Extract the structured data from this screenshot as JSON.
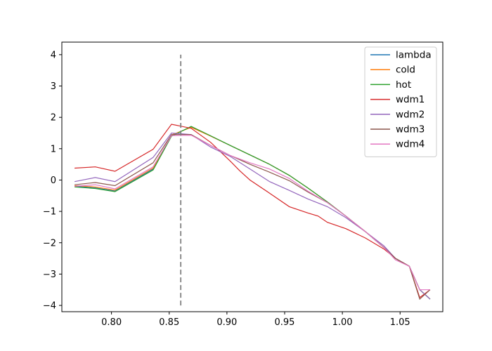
{
  "chart_data": {
    "type": "line",
    "title": "",
    "xlabel": "",
    "ylabel": "",
    "xlim": [
      0.757,
      1.087
    ],
    "ylim": [
      -4.2,
      4.4
    ],
    "xticks": [
      0.8,
      0.85,
      0.9,
      0.95,
      1.0,
      1.05
    ],
    "xtick_labels": [
      "0.80",
      "0.85",
      "0.90",
      "0.95",
      "1.00",
      "1.05"
    ],
    "yticks": [
      -4,
      -3,
      -2,
      -1,
      0,
      1,
      2,
      3,
      4
    ],
    "ytick_labels": [
      "−4",
      "−3",
      "−2",
      "−1",
      "0",
      "1",
      "2",
      "3",
      "4"
    ],
    "grid": false,
    "legend_position": "top-right",
    "vline": {
      "x": 0.86,
      "y_range": [
        -4,
        4
      ],
      "style": "dashed",
      "color": "#808080"
    },
    "series": [
      {
        "name": "lambda",
        "color": "#1f77b4",
        "x": [
          0.768,
          0.786,
          0.803,
          0.836,
          0.852,
          0.869,
          0.886,
          0.903,
          0.92,
          0.937,
          0.954,
          0.97,
          0.987,
          1.003,
          1.02,
          1.036,
          1.046,
          1.058,
          1.067,
          1.076
        ],
        "y": [
          -0.2,
          -0.25,
          -0.35,
          0.35,
          1.42,
          1.7,
          1.4,
          1.1,
          0.8,
          0.5,
          0.15,
          -0.25,
          -0.7,
          -1.15,
          -1.65,
          -2.15,
          -2.5,
          -2.75,
          -3.5,
          -3.8
        ]
      },
      {
        "name": "cold",
        "color": "#ff7f0e",
        "x": [
          0.768,
          0.786,
          0.803,
          0.836,
          0.852,
          0.869,
          0.886,
          0.903,
          0.92,
          0.937,
          0.954,
          0.97,
          0.987,
          1.003,
          1.02,
          1.036,
          1.046,
          1.058,
          1.067,
          1.076
        ],
        "y": [
          -0.18,
          -0.22,
          -0.32,
          0.38,
          1.44,
          1.68,
          1.4,
          1.1,
          0.8,
          0.5,
          0.15,
          -0.25,
          -0.7,
          -1.15,
          -1.65,
          -2.15,
          -2.5,
          -2.75,
          -3.5,
          -3.8
        ]
      },
      {
        "name": "hot",
        "color": "#2ca02c",
        "x": [
          0.768,
          0.786,
          0.803,
          0.836,
          0.852,
          0.869,
          0.886,
          0.903,
          0.92,
          0.937,
          0.954,
          0.97,
          0.987,
          1.003,
          1.02,
          1.036,
          1.046,
          1.058,
          1.067,
          1.076
        ],
        "y": [
          -0.22,
          -0.27,
          -0.37,
          0.32,
          1.4,
          1.71,
          1.41,
          1.1,
          0.8,
          0.5,
          0.15,
          -0.25,
          -0.7,
          -1.15,
          -1.65,
          -2.15,
          -2.5,
          -2.75,
          -3.5,
          -3.8
        ]
      },
      {
        "name": "wdm1",
        "color": "#d62728",
        "x": [
          0.768,
          0.786,
          0.803,
          0.836,
          0.852,
          0.869,
          0.886,
          0.903,
          0.911,
          0.92,
          0.937,
          0.954,
          0.97,
          0.979,
          0.987,
          1.003,
          1.02,
          1.036,
          1.046,
          1.058,
          1.067,
          1.076
        ],
        "y": [
          0.38,
          0.42,
          0.28,
          0.98,
          1.78,
          1.65,
          1.2,
          0.6,
          0.3,
          0.0,
          -0.42,
          -0.85,
          -1.05,
          -1.15,
          -1.35,
          -1.55,
          -1.85,
          -2.2,
          -2.5,
          -2.75,
          -3.75,
          -3.5
        ]
      },
      {
        "name": "wdm2",
        "color": "#9467bd",
        "x": [
          0.768,
          0.786,
          0.803,
          0.836,
          0.852,
          0.869,
          0.886,
          0.903,
          0.92,
          0.937,
          0.954,
          0.97,
          0.987,
          1.003,
          1.02,
          1.036,
          1.046,
          1.058,
          1.067,
          1.076
        ],
        "y": [
          -0.05,
          0.08,
          -0.05,
          0.72,
          1.5,
          1.45,
          1.05,
          0.75,
          0.35,
          -0.05,
          -0.33,
          -0.6,
          -0.85,
          -1.2,
          -1.65,
          -2.1,
          -2.5,
          -2.75,
          -3.5,
          -3.8
        ]
      },
      {
        "name": "wdm3",
        "color": "#8c564b",
        "x": [
          0.768,
          0.786,
          0.803,
          0.836,
          0.852,
          0.869,
          0.886,
          0.903,
          0.92,
          0.937,
          0.954,
          0.97,
          0.987,
          1.003,
          1.02,
          1.036,
          1.046,
          1.058,
          1.067,
          1.076
        ],
        "y": [
          -0.15,
          -0.08,
          -0.18,
          0.55,
          1.45,
          1.45,
          1.1,
          0.78,
          0.5,
          0.25,
          -0.02,
          -0.38,
          -0.72,
          -1.15,
          -1.65,
          -2.15,
          -2.5,
          -2.75,
          -3.8,
          -3.5
        ]
      },
      {
        "name": "wdm4",
        "color": "#e377c2",
        "x": [
          0.768,
          0.786,
          0.803,
          0.836,
          0.852,
          0.869,
          0.886,
          0.903,
          0.92,
          0.937,
          0.954,
          0.97,
          0.987,
          1.003,
          1.02,
          1.036,
          1.046,
          1.058,
          1.067,
          1.076
        ],
        "y": [
          -0.2,
          -0.15,
          -0.28,
          0.42,
          1.42,
          1.43,
          1.1,
          0.78,
          0.55,
          0.35,
          0.05,
          -0.35,
          -0.72,
          -1.15,
          -1.65,
          -2.15,
          -2.55,
          -2.75,
          -3.5,
          -3.5
        ]
      }
    ]
  }
}
